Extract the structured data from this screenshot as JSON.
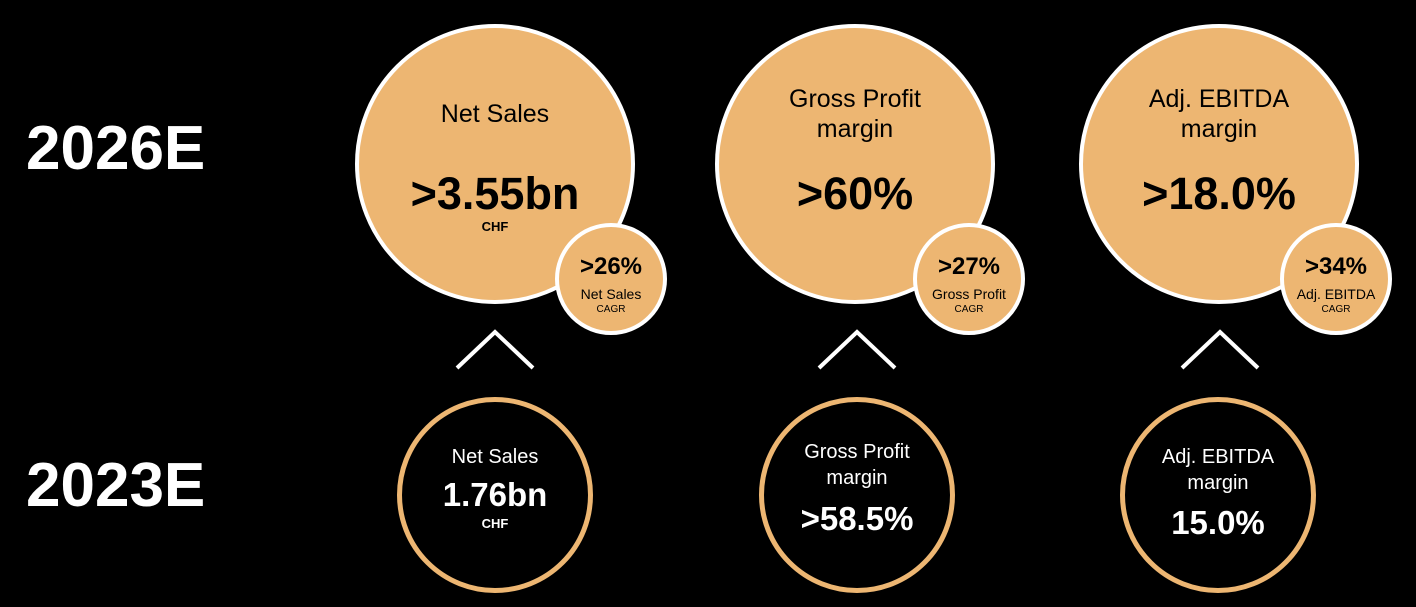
{
  "colors": {
    "background": "#000000",
    "accent": "#EDB672",
    "ring": "#FFFFFF"
  },
  "years": {
    "target": "2026E",
    "current": "2023E"
  },
  "targets": [
    {
      "label_line1": "Net Sales",
      "label_line2": "",
      "value": ">3.55bn",
      "unit": "CHF",
      "cagr_value": ">26%",
      "cagr_name": "Net Sales",
      "cagr_suffix": "CAGR"
    },
    {
      "label_line1": "Gross Profit",
      "label_line2": "margin",
      "value": ">60%",
      "unit": "",
      "cagr_value": ">27%",
      "cagr_name": "Gross Profit",
      "cagr_suffix": "CAGR"
    },
    {
      "label_line1": "Adj. EBITDA",
      "label_line2": "margin",
      "value": ">18.0%",
      "unit": "",
      "cagr_value": ">34%",
      "cagr_name": "Adj. EBITDA",
      "cagr_suffix": "CAGR"
    }
  ],
  "current": [
    {
      "label_line1": "Net Sales",
      "label_line2": "",
      "value": "1.76bn",
      "unit": "CHF"
    },
    {
      "label_line1": "Gross Profit",
      "label_line2": "margin",
      "value": ">58.5%",
      "unit": ""
    },
    {
      "label_line1": "Adj. EBITDA",
      "label_line2": "margin",
      "value": "15.0%",
      "unit": ""
    }
  ],
  "icons": {
    "growth_arrow": "chevron-up-icon"
  }
}
